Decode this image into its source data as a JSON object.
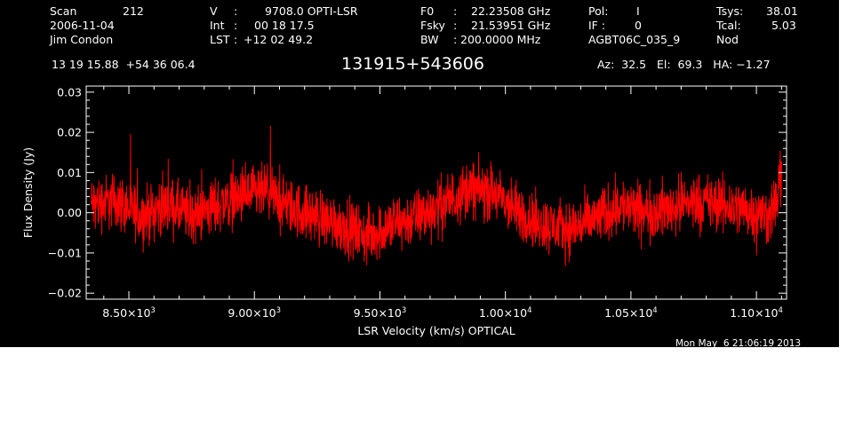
{
  "header": {
    "col1": {
      "scan_label": "Scan",
      "scan_value": "212",
      "date": "2006-11-04",
      "observer": "Jim Condon"
    },
    "col2": {
      "v_label": "V",
      "v_value": "9708.0 OPTI-LSR",
      "int_label": "Int",
      "int_value": "00 18 17.5",
      "lst_label": "LST",
      "lst_value": "+12 02 49.2"
    },
    "col3": {
      "f0_label": "F0",
      "f0_value": "22.23508 GHz",
      "fsky_label": "Fsky",
      "fsky_value": "21.53951 GHz",
      "bw_label": "BW",
      "bw_value": "200.0000 MHz"
    },
    "col4": {
      "pol_label": "Pol:",
      "pol_value": "I",
      "if_label": "IF :",
      "if_value": "0",
      "project": "AGBT06C_035_9"
    },
    "col5": {
      "tsys_label": "Tsys:",
      "tsys_value": "38.01",
      "tcal_label": "Tcal:",
      "tcal_value": "5.03",
      "mode": "Nod"
    },
    "coords": "13 19 15.88  +54 36 06.4",
    "source": "131915+543606",
    "azelha": "Az:  32.5   El:  69.3   HA: −1.27"
  },
  "timestamp": "Mon May  6 21:06:19 2013",
  "colors": {
    "background": "#000000",
    "axes": "#ffffff",
    "trace": "#ff0000"
  },
  "chart_data": {
    "type": "line",
    "xlabel": "LSR Velocity (km/s) OPTICAL",
    "ylabel": "Flux Density (Jy)",
    "xlim": [
      8330,
      11120
    ],
    "ylim": [
      -0.0215,
      0.0315
    ],
    "x_ticks": [
      {
        "value": 8500,
        "mant": "8.50×10",
        "exp": "3"
      },
      {
        "value": 9000,
        "mant": "9.00×10",
        "exp": "3"
      },
      {
        "value": 9500,
        "mant": "9.50×10",
        "exp": "3"
      },
      {
        "value": 10000,
        "mant": "1.00×10",
        "exp": "4"
      },
      {
        "value": 10500,
        "mant": "1.05×10",
        "exp": "4"
      },
      {
        "value": 11000,
        "mant": "1.10×10",
        "exp": "4"
      }
    ],
    "y_ticks": [
      {
        "value": 0.03,
        "label": "0.03"
      },
      {
        "value": 0.02,
        "label": "0.02"
      },
      {
        "value": 0.01,
        "label": "0.01"
      },
      {
        "value": 0.0,
        "label": "0.00"
      },
      {
        "value": -0.01,
        "label": "−0.01"
      },
      {
        "value": -0.02,
        "label": "−0.02"
      }
    ],
    "grid": false,
    "series": [
      {
        "color": "#ff0000",
        "x": [
          8350,
          8450,
          8550,
          8650,
          8750,
          8850,
          8950,
          9050,
          9150,
          9250,
          9350,
          9450,
          9550,
          9650,
          9750,
          9850,
          9950,
          10050,
          10150,
          10250,
          10350,
          10450,
          10550,
          10650,
          10750,
          10850,
          10950,
          11050,
          11100
        ],
        "y": [
          0.002,
          0.003,
          -0.001,
          0.002,
          -0.001,
          0.002,
          0.004,
          0.005,
          0.001,
          -0.001,
          -0.003,
          -0.006,
          -0.003,
          -0.001,
          0.002,
          0.006,
          0.005,
          0.0,
          -0.003,
          -0.004,
          -0.002,
          0.002,
          0.0,
          0.001,
          0.003,
          0.002,
          0.001,
          -0.001,
          0.006
        ]
      }
    ]
  }
}
